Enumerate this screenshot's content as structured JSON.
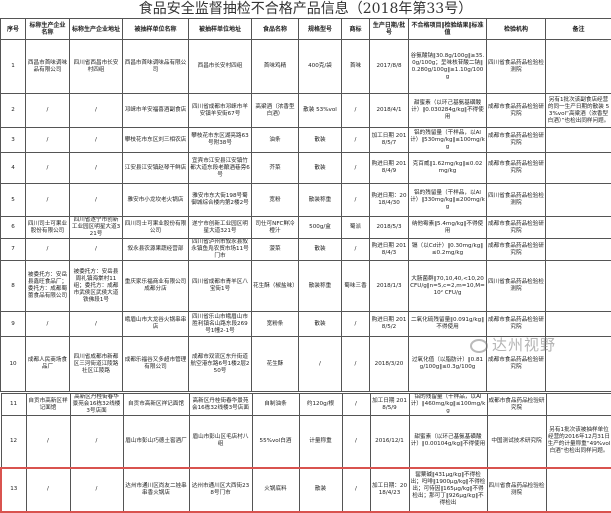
{
  "title": "食品安全监督抽检不合格产品信息（2018年第33号）",
  "headers": [
    "序号",
    "标称生产企业名称",
    "标称生产企业地址",
    "被抽样单位名称",
    "被抽样单位地址",
    "食品名称",
    "规格型号",
    "商标",
    "生产日期/批号",
    "不合格项目‖检验结果‖标准值",
    "检验机构",
    "备注"
  ],
  "rows_top": [
    [
      "1",
      "西昌市首味调味品有限公司",
      "四川省西昌市长安村四组",
      "西昌市首味调味品有限公司",
      "西昌市长安村四组",
      "首味鸡精",
      "400克/袋",
      "首味",
      "2017/8/8",
      "谷氨酸钠‖30.8g/100g‖≥35.0g/100g；呈味核苷酸二钠‖0.280g/100g‖≥1.10g/100g",
      "四川省食品药品检验检测院",
      ""
    ],
    [
      "2",
      "/",
      "/",
      "邛崃市羊安福喜酒副食店",
      "四川省成都市邛崃市羊安镇羊安街67号",
      "高粱酒（浓香型白酒）",
      "散装 53%vol",
      "/",
      "2018/4/1",
      "甜蜜素（以环己基氨基磺酸计）‖0.030284g/kg‖不得使用",
      "成都市食品药品检验研究院",
      "另有1批次该副食店经营的同一生产日期的散装 53%vol“高粱酒（浓香型白酒）”也检出同样问题。"
    ],
    [
      "3",
      "/",
      "/",
      "攀枝花市东区刘三相农店",
      "攀枝花市东区湖亮路63号附38号",
      "油条",
      "散装",
      "/",
      "加工日期 2018/5/7",
      "铝的残留量（干样品，以Al计）‖530mg/kg‖≤100mg/kg",
      "成都市食品药品检验研究院",
      ""
    ],
    [
      "4",
      "/",
      "/",
      "江安县江安镇赵琴干鲜店",
      "宜宾市江安县江安镇竹都大道东段老酿酒巷旁6号",
      "芥菜",
      "散装",
      "/",
      "购进日期 2018/4/9",
      "克百威‖1.62mg/kg‖≤0.02mg/kg",
      "成都市食品药品检验研究院",
      ""
    ],
    [
      "5",
      "/",
      "/",
      "雅安市小龙坎老火锅店",
      "雅安市东大街198号蜀御城综合楼内第2楼2号",
      "宽粉",
      "散装称重",
      "/",
      "购进日期：2018/4/30",
      "铝的残留量（干样品，以Al计）‖330mg/kg‖≤200mg/kg",
      "四川省食品药品检验检测院",
      ""
    ],
    [
      "6",
      "四川司士可果业股份有限公司",
      "四川省遂宁市创新工业园区明星大道321号",
      "四川司士可果业股份有限公司",
      "遂宁市创新工业园区明星大道321号",
      "司仕可NFC鲜冷橙汁",
      "500g/盒",
      "蜀派",
      "2018/5/3",
      "纳他霉素‖5.4mg/kg‖不得使用",
      "成都市食品药品检验研究院",
      ""
    ],
    [
      "7",
      "/",
      "/",
      "叙永县农源果蔬经营部",
      "四川省泸州市叙永县叙永镇鱼凫农贸市场11号门市",
      "菠菜",
      "散装",
      "/",
      "购进日期 2018/4/3",
      "镉（以Cd计）‖0.30mg/kg‖≤0.2mg/kg",
      "成都市食品药品检验研究院",
      ""
    ],
    [
      "8",
      "被委托方：安岳县鑫旺食品厂；委托方：成都蜀蕾食品有限公司",
      "被委托方：安岳县周礼镇海棠村11组；委托方：成都市武侯区武侯大道铁佛段1号",
      "重庆家乐福商业有限公司成都分店",
      "四川省成都市青羊区八宝街1号",
      "花生酥（椒盐味）",
      "散装称重",
      "蜀味三香",
      "2018/1/3",
      "大肠菌群‖70,10,40,<10,20CFU/g‖n=5,c=2,m=10,M=10² CFU/g",
      "四川省食品药品检验检测院",
      ""
    ],
    [
      "9",
      "/",
      "/",
      "峨眉山市大龙谷火锅串串店",
      "四川省乐山市峨眉山市胜利镇名山路东段269号1幢2-1号",
      "宽粉条",
      "散装",
      "/",
      "购进日期 2018/5/2",
      "二氧化硫残留量‖0.091g/kg‖不得使用",
      "成都市食品药品检验研究院",
      ""
    ],
    [
      "10",
      "成都人民商场食品厂",
      "四川省成都市新都区三河街道江陵路社区江陵路",
      "成都乐福谷又多超市管理有限公司",
      "成都市双流区东升街道航空港东路6号1楼2层250号",
      "花生酥",
      "/",
      "/",
      "2018/3/20",
      "过氧化值（以脂肪计）‖0.81g/100g‖≤0.3g/100g",
      "成都市食品药品检验研究院",
      ""
    ]
  ],
  "rows_bottom": [
    [
      "11",
      "自贡市高新区祥记面馆",
      "高新区丹桂街春华景苑会16栋32线楼3号店面",
      "自贡市高新区祥记面馆",
      "高新区丹桂街春华景苑会16栋32线楼3号店面",
      "自制油条",
      "约120g/根",
      "/",
      "加工日期 2018/5/9",
      "铝的残留量（干样品，以Al计）‖460mg/kg‖≤100mg/kg",
      "成都市食品药品检验研究院",
      ""
    ],
    [
      "12",
      "/",
      "/",
      "眉山市彭山巧德土窖酒厂",
      "眉山市彭山区毛店村八组",
      "55%vol白酒",
      "计量称重",
      "/",
      "2016/12/1",
      "甜蜜素（以环己基氨基磺酸计）‖0.00104g/kg‖不得使用",
      "中国测试技术研究院",
      "另有1批次该被抽样单位经营的2016年12月31日生产的计量称重“49%vol白酒”也检出同样问题。"
    ],
    [
      "13",
      "/",
      "/",
      "达州市通川区尚友二娃串串香火锅店",
      "达州市通川区大西街238号门市",
      "火锅底料",
      "散装",
      "/",
      "加工日期：2018/4/23",
      "罂粟碱‖431μg/kg‖不得检出；吗啡‖1900μg/kg‖不得检出；可待因‖165μg/kg‖不得检出；那可丁‖926μg/kg‖不得检出",
      "四川省食品药品检验检测院",
      ""
    ]
  ],
  "highlighted_row": "13",
  "highlight_color": "#d9534f",
  "watermark": "达州视野"
}
